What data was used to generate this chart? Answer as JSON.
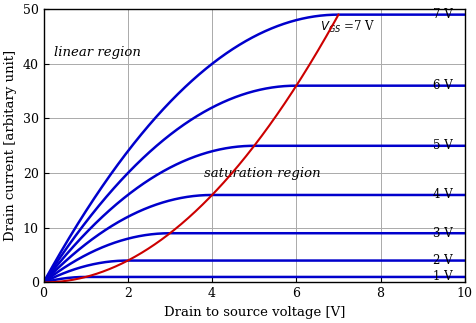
{
  "xlabel": "Drain to source voltage [V]",
  "ylabel": "Drain current [arbitary unit]",
  "xlim": [
    0,
    10
  ],
  "ylim": [
    0,
    50
  ],
  "xticks": [
    0,
    2,
    4,
    6,
    8,
    10
  ],
  "yticks": [
    0,
    10,
    20,
    30,
    40,
    50
  ],
  "VGS_list": [
    1,
    2,
    3,
    4,
    5,
    6,
    7
  ],
  "Vth": 0.0,
  "K": 1.0,
  "curve_color": "#0000cc",
  "sat_line_color": "#cc0000",
  "grid_color": "#aaaaaa",
  "background_color": "#ffffff",
  "label_linear": "linear region",
  "label_sat": "saturation region",
  "figsize": [
    4.77,
    3.23
  ],
  "dpi": 100
}
